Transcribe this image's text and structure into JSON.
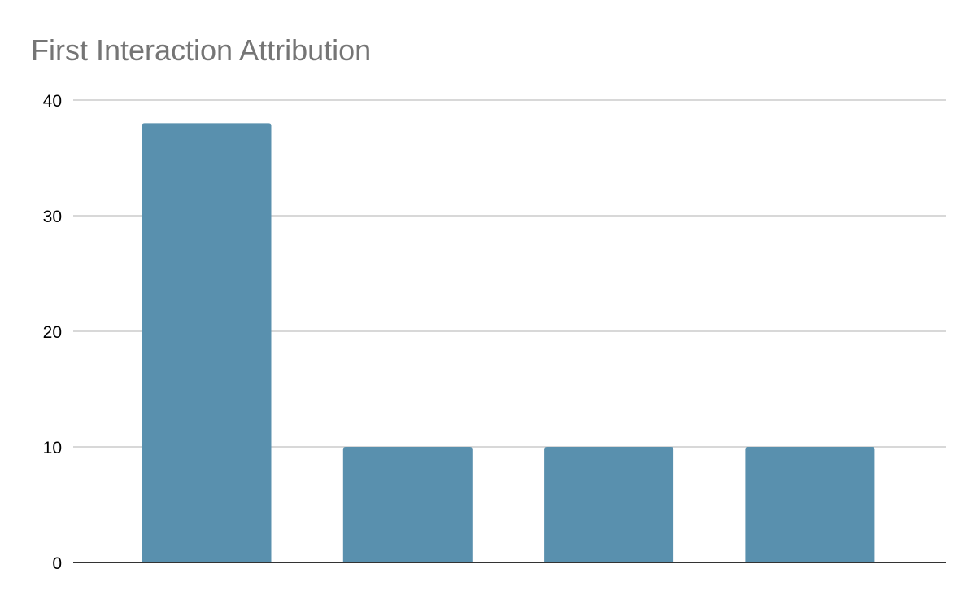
{
  "chart_data": {
    "type": "bar",
    "title": "First Interaction Attribution",
    "xlabel": "",
    "ylabel": "",
    "categories": [
      "",
      "",
      "",
      ""
    ],
    "values": [
      38,
      10,
      10,
      10
    ],
    "ylim": [
      0,
      40
    ],
    "yticks": [
      0,
      10,
      20,
      30,
      40
    ],
    "grid": true,
    "legend": "none",
    "colors": {
      "bar": "#5990ae",
      "gridline": "#cccccc",
      "baseline": "#333333",
      "title": "#757575",
      "tick_label": "#000000"
    }
  }
}
